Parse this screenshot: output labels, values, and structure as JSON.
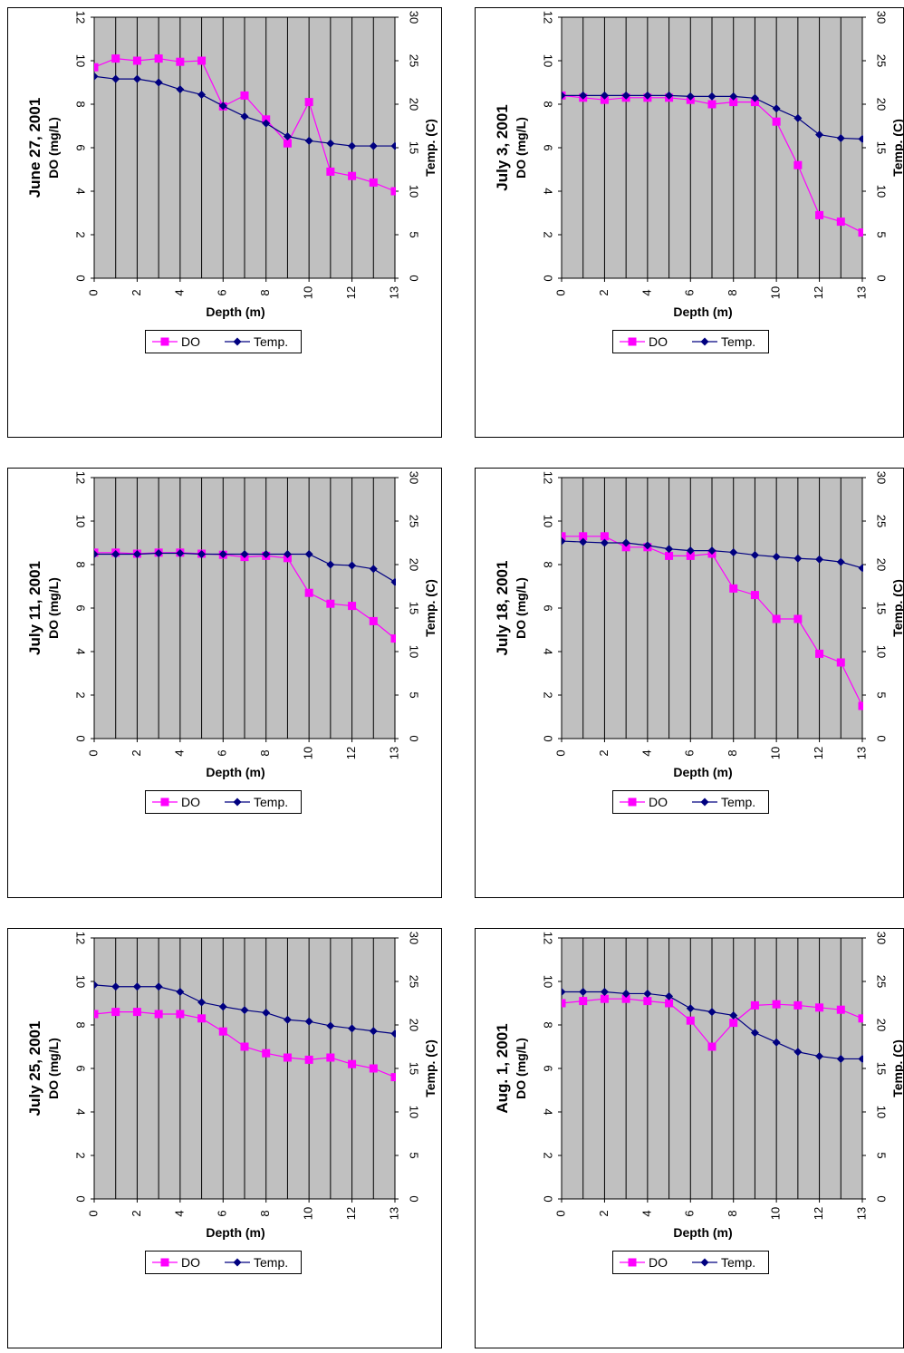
{
  "colors": {
    "do": "#ff00ff",
    "temp": "#000080",
    "plot_bg": "#c0c0c0",
    "grid": "#000000"
  },
  "chart_data": [
    {
      "type": "line",
      "title": "June 27, 2001",
      "xlabel": "Depth (m)",
      "ylabel_left": "DO (mg/L)",
      "ylabel_right": "Temp. (C)",
      "x_ticks": [
        "0",
        "2",
        "4",
        "6",
        "8",
        "10",
        "12",
        "13"
      ],
      "xlim": [
        0,
        14
      ],
      "ylim_left": [
        0,
        12
      ],
      "ylim_right": [
        0,
        30
      ],
      "legend": "bottom",
      "grid": true,
      "series": [
        {
          "name": "DO",
          "axis": "left",
          "x": [
            0,
            1,
            2,
            3,
            4,
            5,
            6,
            7,
            8,
            9,
            10,
            11,
            12,
            13,
            14
          ],
          "values": [
            9.7,
            10.1,
            10.0,
            10.1,
            9.95,
            10.0,
            7.9,
            8.4,
            7.3,
            6.2,
            8.1,
            4.9,
            4.7,
            4.4,
            4.0
          ]
        },
        {
          "name": "Temp.",
          "axis": "right",
          "x": [
            0,
            1,
            2,
            3,
            4,
            5,
            6,
            7,
            8,
            9,
            10,
            11,
            12,
            13,
            14
          ],
          "values": [
            23.2,
            22.9,
            22.9,
            22.5,
            21.7,
            21.1,
            19.8,
            18.6,
            17.8,
            16.3,
            15.8,
            15.5,
            15.2,
            15.2,
            15.2
          ]
        }
      ]
    },
    {
      "type": "line",
      "title": "July 3, 2001",
      "xlabel": "Depth (m)",
      "ylabel_left": "DO (mg/L)",
      "ylabel_right": "Temp. (C)",
      "x_ticks": [
        "0",
        "2",
        "4",
        "6",
        "8",
        "10",
        "12",
        "13"
      ],
      "xlim": [
        0,
        14
      ],
      "ylim_left": [
        0,
        12
      ],
      "ylim_right": [
        0,
        30
      ],
      "legend": "bottom",
      "grid": true,
      "series": [
        {
          "name": "DO",
          "axis": "left",
          "x": [
            0,
            1,
            2,
            3,
            4,
            5,
            6,
            7,
            8,
            9,
            10,
            11,
            12,
            13,
            14
          ],
          "values": [
            8.4,
            8.3,
            8.2,
            8.3,
            8.3,
            8.3,
            8.2,
            8.0,
            8.1,
            8.1,
            7.2,
            5.2,
            2.9,
            2.6,
            2.1
          ]
        },
        {
          "name": "Temp.",
          "axis": "right",
          "x": [
            0,
            1,
            2,
            3,
            4,
            5,
            6,
            7,
            8,
            9,
            10,
            11,
            12,
            13,
            14,
            15
          ],
          "values": [
            21.0,
            21.0,
            21.0,
            21.0,
            21.0,
            21.0,
            20.9,
            20.9,
            20.9,
            20.7,
            19.5,
            18.4,
            16.5,
            16.1,
            16.0,
            15.6
          ]
        }
      ]
    },
    {
      "type": "line",
      "title": "July 11, 2001",
      "xlabel": "Depth (m)",
      "ylabel_left": "DO (mg/L)",
      "ylabel_right": "Temp. (C)",
      "x_ticks": [
        "0",
        "2",
        "4",
        "6",
        "8",
        "10",
        "12",
        "13"
      ],
      "xlim": [
        0,
        14
      ],
      "ylim_left": [
        0,
        12
      ],
      "ylim_right": [
        0,
        30
      ],
      "legend": "bottom",
      "grid": true,
      "series": [
        {
          "name": "DO",
          "axis": "left",
          "x": [
            0,
            1,
            2,
            3,
            4,
            5,
            6,
            7,
            8,
            9,
            10,
            11,
            12,
            13,
            14
          ],
          "values": [
            8.55,
            8.55,
            8.5,
            8.55,
            8.55,
            8.5,
            8.45,
            8.35,
            8.4,
            8.3,
            6.7,
            6.2,
            6.1,
            5.4,
            4.6
          ]
        },
        {
          "name": "Temp.",
          "axis": "right",
          "x": [
            0,
            1,
            2,
            3,
            4,
            5,
            6,
            7,
            8,
            9,
            10,
            11,
            12,
            13,
            14
          ],
          "values": [
            21.2,
            21.2,
            21.2,
            21.3,
            21.3,
            21.2,
            21.2,
            21.2,
            21.2,
            21.2,
            21.2,
            20.0,
            19.9,
            19.5,
            18.0
          ]
        }
      ]
    },
    {
      "type": "line",
      "title": "July 18, 2001",
      "xlabel": "Depth (m)",
      "ylabel_left": "DO (mg/L)",
      "ylabel_right": "Temp. (C)",
      "x_ticks": [
        "0",
        "2",
        "4",
        "6",
        "8",
        "10",
        "12",
        "13"
      ],
      "xlim": [
        0,
        14
      ],
      "ylim_left": [
        0,
        12
      ],
      "ylim_right": [
        0,
        30
      ],
      "legend": "bottom",
      "grid": true,
      "series": [
        {
          "name": "DO",
          "axis": "left",
          "x": [
            0,
            1,
            2,
            3,
            4,
            5,
            6,
            7,
            8,
            9,
            10,
            11,
            12,
            13,
            14
          ],
          "values": [
            9.3,
            9.3,
            9.3,
            8.8,
            8.8,
            8.4,
            8.4,
            8.5,
            6.9,
            6.6,
            5.5,
            5.5,
            3.9,
            3.5,
            1.5
          ]
        },
        {
          "name": "Temp.",
          "axis": "right",
          "x": [
            0,
            1,
            2,
            3,
            4,
            5,
            6,
            7,
            8,
            9,
            10,
            11,
            12,
            13,
            14
          ],
          "values": [
            22.7,
            22.6,
            22.5,
            22.5,
            22.2,
            21.8,
            21.6,
            21.6,
            21.4,
            21.1,
            20.9,
            20.7,
            20.6,
            20.3,
            19.6
          ]
        }
      ]
    },
    {
      "type": "line",
      "title": "July 25, 2001",
      "xlabel": "Depth (m)",
      "ylabel_left": "DO (mg/L)",
      "ylabel_right": "Temp. (C)",
      "x_ticks": [
        "0",
        "2",
        "4",
        "6",
        "8",
        "10",
        "12",
        "13"
      ],
      "xlim": [
        0,
        14
      ],
      "ylim_left": [
        0,
        12
      ],
      "ylim_right": [
        0,
        30
      ],
      "legend": "bottom",
      "grid": true,
      "series": [
        {
          "name": "DO",
          "axis": "left",
          "x": [
            0,
            1,
            2,
            3,
            4,
            5,
            6,
            7,
            8,
            9,
            10,
            11,
            12,
            13,
            14
          ],
          "values": [
            8.5,
            8.6,
            8.6,
            8.5,
            8.5,
            8.3,
            7.7,
            7.0,
            6.7,
            6.5,
            6.4,
            6.5,
            6.2,
            6.0,
            5.6
          ]
        },
        {
          "name": "Temp.",
          "axis": "right",
          "x": [
            0,
            1,
            2,
            3,
            4,
            5,
            6,
            7,
            8,
            9,
            10,
            11,
            12,
            13,
            14
          ],
          "values": [
            24.6,
            24.4,
            24.4,
            24.4,
            23.8,
            22.6,
            22.1,
            21.7,
            21.4,
            20.6,
            20.4,
            19.9,
            19.6,
            19.3,
            19.0
          ]
        }
      ]
    },
    {
      "type": "line",
      "title": "Aug. 1, 2001",
      "xlabel": "Depth (m)",
      "ylabel_left": "DO (mg/L)",
      "ylabel_right": "Temp. (C)",
      "x_ticks": [
        "0",
        "2",
        "4",
        "6",
        "8",
        "10",
        "12",
        "13"
      ],
      "xlim": [
        0,
        14
      ],
      "ylim_left": [
        0,
        12
      ],
      "ylim_right": [
        0,
        30
      ],
      "legend": "bottom",
      "grid": true,
      "series": [
        {
          "name": "DO",
          "axis": "left",
          "x": [
            0,
            1,
            2,
            3,
            4,
            5,
            6,
            7,
            8,
            9,
            10,
            11,
            12,
            13,
            14
          ],
          "values": [
            9.0,
            9.1,
            9.2,
            9.2,
            9.1,
            9.0,
            8.2,
            7.0,
            8.1,
            8.9,
            8.95,
            8.9,
            8.8,
            8.7,
            8.3
          ]
        },
        {
          "name": "Temp.",
          "axis": "right",
          "x": [
            0,
            1,
            2,
            3,
            4,
            5,
            6,
            7,
            8,
            9,
            10,
            11,
            12,
            13,
            14,
            15
          ],
          "values": [
            23.8,
            23.8,
            23.8,
            23.6,
            23.6,
            23.3,
            21.9,
            21.5,
            21.1,
            19.1,
            18.0,
            16.9,
            16.4,
            16.1,
            16.1,
            16.1
          ]
        }
      ]
    }
  ]
}
